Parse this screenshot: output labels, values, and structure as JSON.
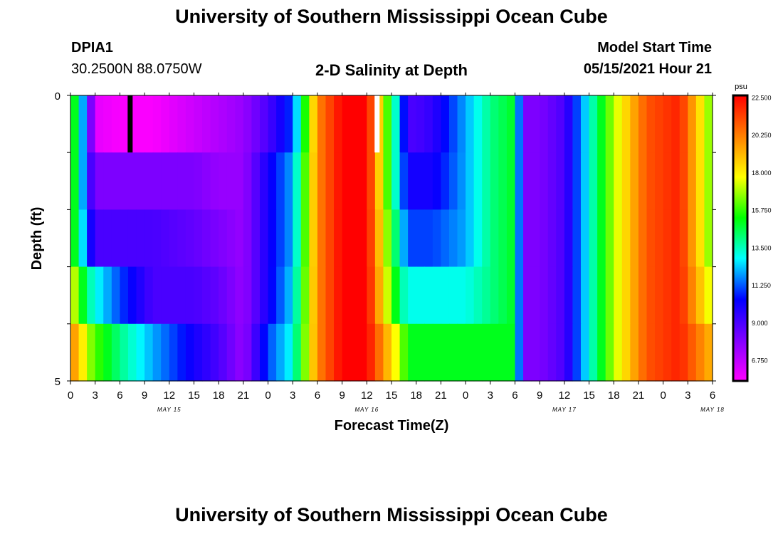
{
  "header": {
    "title": "University of Southern Mississippi Ocean Cube",
    "station_id": "DPIA1",
    "coordinates": "30.2500N  88.0750W",
    "model_start_label": "Model Start Time",
    "model_start_value": "05/15/2021 Hour 21"
  },
  "footer": {
    "title": "University of Southern Mississippi Ocean Cube"
  },
  "colors": {
    "background": "#ffffff",
    "axis": "#000000",
    "colormap": [
      "#ff00ff",
      "#8000ff",
      "#0000ff",
      "#00ffff",
      "#00ff00",
      "#ffff00",
      "#ff8000",
      "#ff0000"
    ]
  },
  "chart_data": {
    "type": "heatmap",
    "title": "2-D Salinity at Depth",
    "xlabel": "Forecast Time(Z)",
    "ylabel": "Depth (ft)",
    "x_tick_labels": [
      "0",
      "3",
      "6",
      "9",
      "12",
      "15",
      "18",
      "21",
      "0",
      "3",
      "6",
      "9",
      "12",
      "15",
      "18",
      "21",
      "0",
      "3",
      "6",
      "9",
      "12",
      "15",
      "18",
      "21",
      "0",
      "3",
      "6"
    ],
    "date_labels": [
      {
        "label": "MAY 15",
        "hour": 12
      },
      {
        "label": "MAY 16",
        "hour": 36
      },
      {
        "label": "MAY 17",
        "hour": 60
      },
      {
        "label": "MAY 18",
        "hour": 78
      }
    ],
    "x_range_hours": [
      0,
      78
    ],
    "y_tick_labels": [
      "0",
      "5"
    ],
    "ylim": [
      0,
      5
    ],
    "depth_rows": 5,
    "colorbar": {
      "unit": "psu",
      "labels": [
        "22.500",
        "20.250",
        "18.000",
        "15.750",
        "13.500",
        "11.250",
        "9.000",
        "6.750"
      ],
      "range": [
        5.5,
        22.6
      ]
    },
    "markers": [
      {
        "hour": 7.25,
        "depth_row": 0,
        "color": "#000000"
      },
      {
        "hour": 37.25,
        "depth_row": 0,
        "color": "#ffffff"
      }
    ],
    "salinity_profiles": {
      "hours": [
        0,
        1,
        2,
        3,
        6,
        10,
        15,
        18,
        21,
        24,
        27,
        30,
        33,
        34,
        36,
        40,
        41,
        42,
        44,
        48,
        51,
        54,
        55,
        57,
        60,
        63,
        66,
        70,
        74,
        78
      ],
      "rows": [
        [
          16,
          14,
          10,
          6,
          5.6,
          5.6,
          6.5,
          7,
          7.5,
          9,
          11,
          20,
          22.6,
          22.6,
          22.6,
          12,
          9,
          9,
          9.5,
          12,
          14,
          15,
          8,
          8,
          9,
          13,
          17,
          21,
          22,
          16
        ],
        [
          16,
          14,
          10,
          8,
          8,
          8,
          8,
          7.5,
          7.5,
          10,
          12,
          20,
          22.6,
          22.6,
          22.6,
          12,
          10,
          10,
          10,
          12,
          14,
          15,
          8,
          8,
          9,
          13,
          17,
          21,
          22,
          16
        ],
        [
          16,
          14,
          11,
          9,
          9,
          9,
          8.5,
          8,
          7.5,
          10,
          12,
          20,
          22.6,
          22.6,
          22.6,
          13,
          11,
          11,
          11,
          12,
          14,
          15,
          8,
          8,
          9,
          13,
          17,
          21,
          22,
          16
        ],
        [
          18,
          16,
          14,
          13,
          11,
          9,
          9,
          8.5,
          7.5,
          10,
          12.5,
          20,
          22.6,
          22.6,
          22.6,
          14,
          13,
          13,
          13,
          13,
          14,
          15,
          8,
          8,
          9,
          13,
          17,
          21,
          22,
          17
        ],
        [
          20,
          19,
          17,
          16,
          14,
          12,
          10,
          9,
          7.5,
          11,
          13,
          20,
          22.6,
          22.6,
          22.6,
          17,
          15,
          15,
          15,
          15,
          15,
          15,
          8,
          8,
          9,
          13,
          17,
          21,
          22,
          19
        ]
      ]
    }
  }
}
